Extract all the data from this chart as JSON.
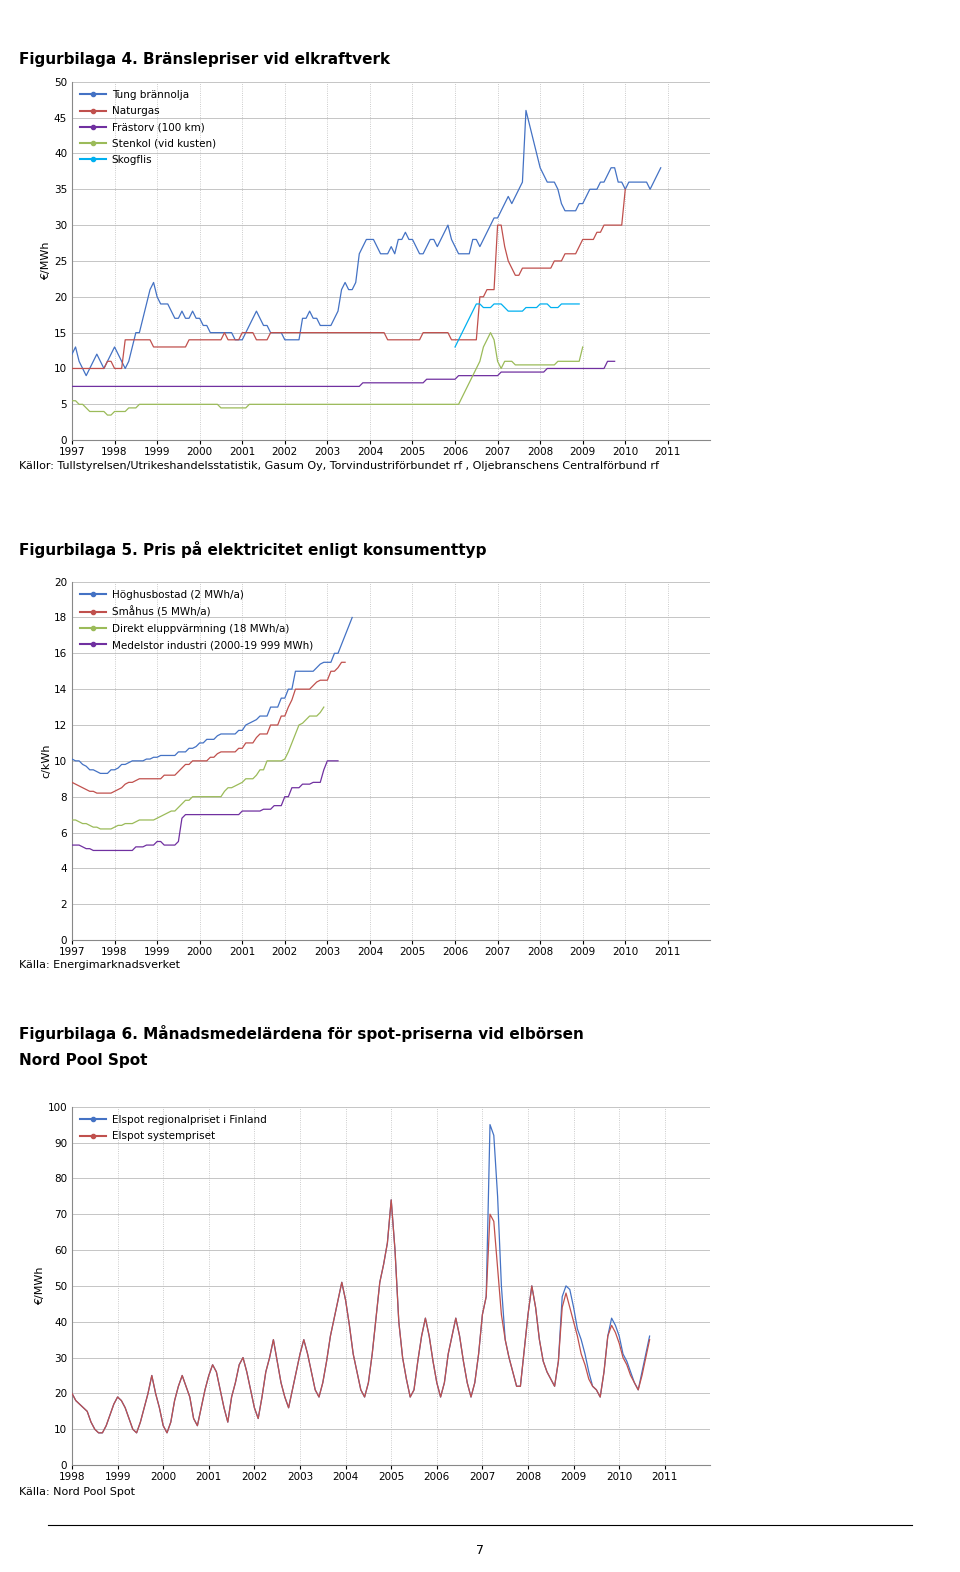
{
  "fig4_title": "Figurbilaga 4. Bränslepriser vid elkraftverk",
  "fig4_ylabel": "€/MWh",
  "fig4_ylim": [
    0,
    50
  ],
  "fig4_yticks": [
    0,
    5,
    10,
    15,
    20,
    25,
    30,
    35,
    40,
    45,
    50
  ],
  "fig4_years": [
    1997,
    1998,
    1999,
    2000,
    2001,
    2002,
    2003,
    2004,
    2005,
    2006,
    2007,
    2008,
    2009,
    2010,
    2011
  ],
  "fig4_source": "Källor: Tullstyrelsen/Utrikeshandelsstatistik, Gasum Oy, Torvindustriförbundet rf , Oljebranschens Centralförbund rf",
  "fig4_series": {
    "Tung brännolja": {
      "color": "#4472C4",
      "start_year": 1997,
      "values": [
        12,
        13,
        11,
        10,
        9,
        10,
        11,
        12,
        11,
        10,
        11,
        12,
        13,
        12,
        11,
        10,
        11,
        13,
        15,
        15,
        17,
        19,
        21,
        22,
        20,
        19,
        19,
        19,
        18,
        17,
        17,
        18,
        17,
        17,
        18,
        17,
        17,
        16,
        16,
        15,
        15,
        15,
        15,
        15,
        15,
        15,
        14,
        14,
        14,
        15,
        16,
        17,
        18,
        17,
        16,
        16,
        15,
        15,
        15,
        15,
        14,
        14,
        14,
        14,
        14,
        17,
        17,
        18,
        17,
        17,
        16,
        16,
        16,
        16,
        17,
        18,
        21,
        22,
        21,
        21,
        22,
        26,
        27,
        28,
        28,
        28,
        27,
        26,
        26,
        26,
        27,
        26,
        28,
        28,
        29,
        28,
        28,
        27,
        26,
        26,
        27,
        28,
        28,
        27,
        28,
        29,
        30,
        28,
        27,
        26,
        26,
        26,
        26,
        28,
        28,
        27,
        28,
        29,
        30,
        31,
        31,
        32,
        33,
        34,
        33,
        34,
        35,
        36,
        46,
        44,
        42,
        40,
        38,
        37,
        36,
        36,
        36,
        35,
        33,
        32,
        32,
        32,
        32,
        33,
        33,
        34,
        35,
        35,
        35,
        36,
        36,
        37,
        38,
        38,
        36,
        36,
        35,
        36,
        36,
        36,
        36,
        36,
        36,
        35,
        36,
        37,
        38
      ]
    },
    "Naturgas": {
      "color": "#C0504D",
      "start_year": 1997,
      "values": [
        10,
        10,
        10,
        10,
        10,
        10,
        10,
        10,
        10,
        10,
        11,
        11,
        10,
        10,
        10,
        14,
        14,
        14,
        14,
        14,
        14,
        14,
        14,
        13,
        13,
        13,
        13,
        13,
        13,
        13,
        13,
        13,
        13,
        14,
        14,
        14,
        14,
        14,
        14,
        14,
        14,
        14,
        14,
        15,
        14,
        14,
        14,
        14,
        15,
        15,
        15,
        15,
        14,
        14,
        14,
        14,
        15,
        15,
        15,
        15,
        15,
        15,
        15,
        15,
        15,
        15,
        15,
        15,
        15,
        15,
        15,
        15,
        15,
        15,
        15,
        15,
        15,
        15,
        15,
        15,
        15,
        15,
        15,
        15,
        15,
        15,
        15,
        15,
        15,
        14,
        14,
        14,
        14,
        14,
        14,
        14,
        14,
        14,
        14,
        15,
        15,
        15,
        15,
        15,
        15,
        15,
        15,
        14,
        14,
        14,
        14,
        14,
        14,
        14,
        14,
        20,
        20,
        21,
        21,
        21,
        30,
        30,
        27,
        25,
        24,
        23,
        23,
        24,
        24,
        24,
        24,
        24,
        24,
        24,
        24,
        24,
        25,
        25,
        25,
        26,
        26,
        26,
        26,
        27,
        28,
        28,
        28,
        28,
        29,
        29,
        30,
        30,
        30,
        30,
        30,
        30,
        35
      ]
    },
    "Frästorv (100 km)": {
      "color": "#7030A0",
      "start_year": 1997,
      "values": [
        7.5,
        7.5,
        7.5,
        7.5,
        7.5,
        7.5,
        7.5,
        7.5,
        7.5,
        7.5,
        7.5,
        7.5,
        7.5,
        7.5,
        7.5,
        7.5,
        7.5,
        7.5,
        7.5,
        7.5,
        7.5,
        7.5,
        7.5,
        7.5,
        7.5,
        7.5,
        7.5,
        7.5,
        7.5,
        7.5,
        7.5,
        7.5,
        7.5,
        7.5,
        7.5,
        7.5,
        7.5,
        7.5,
        7.5,
        7.5,
        7.5,
        7.5,
        7.5,
        7.5,
        7.5,
        7.5,
        7.5,
        7.5,
        7.5,
        7.5,
        7.5,
        7.5,
        7.5,
        7.5,
        7.5,
        7.5,
        7.5,
        7.5,
        7.5,
        7.5,
        7.5,
        7.5,
        7.5,
        7.5,
        7.5,
        7.5,
        7.5,
        7.5,
        7.5,
        7.5,
        7.5,
        7.5,
        7.5,
        7.5,
        7.5,
        7.5,
        7.5,
        7.5,
        7.5,
        7.5,
        7.5,
        7.5,
        8,
        8,
        8,
        8,
        8,
        8,
        8,
        8,
        8,
        8,
        8,
        8,
        8,
        8,
        8,
        8,
        8,
        8,
        8.5,
        8.5,
        8.5,
        8.5,
        8.5,
        8.5,
        8.5,
        8.5,
        8.5,
        9,
        9,
        9,
        9,
        9,
        9,
        9,
        9,
        9,
        9,
        9,
        9,
        9.5,
        9.5,
        9.5,
        9.5,
        9.5,
        9.5,
        9.5,
        9.5,
        9.5,
        9.5,
        9.5,
        9.5,
        9.5,
        10,
        10,
        10,
        10,
        10,
        10,
        10,
        10,
        10,
        10,
        10,
        10,
        10,
        10,
        10,
        10,
        10,
        11,
        11,
        11
      ]
    },
    "Stenkol (vid kusten)": {
      "color": "#9BBB59",
      "start_year": 1997,
      "values": [
        5.5,
        5.5,
        5,
        5,
        4.5,
        4,
        4,
        4,
        4,
        4,
        3.5,
        3.5,
        4,
        4,
        4,
        4,
        4.5,
        4.5,
        4.5,
        5,
        5,
        5,
        5,
        5,
        5,
        5,
        5,
        5,
        5,
        5,
        5,
        5,
        5,
        5,
        5,
        5,
        5,
        5,
        5,
        5,
        5,
        5,
        4.5,
        4.5,
        4.5,
        4.5,
        4.5,
        4.5,
        4.5,
        4.5,
        5,
        5,
        5,
        5,
        5,
        5,
        5,
        5,
        5,
        5,
        5,
        5,
        5,
        5,
        5,
        5,
        5,
        5,
        5,
        5,
        5,
        5,
        5,
        5,
        5,
        5,
        5,
        5,
        5,
        5,
        5,
        5,
        5,
        5,
        5,
        5,
        5,
        5,
        5,
        5,
        5,
        5,
        5,
        5,
        5,
        5,
        5,
        5,
        5,
        5,
        5,
        5,
        5,
        5,
        5,
        5,
        5,
        5,
        5,
        5,
        6,
        7,
        8,
        9,
        10,
        11,
        13,
        14,
        15,
        14,
        11,
        10,
        11,
        11,
        11,
        10.5,
        10.5,
        10.5,
        10.5,
        10.5,
        10.5,
        10.5,
        10.5,
        10.5,
        10.5,
        10.5,
        10.5,
        11,
        11,
        11,
        11,
        11,
        11,
        11,
        13
      ]
    },
    "Skogflis": {
      "color": "#00B0F0",
      "start_year": 2006,
      "values": [
        13,
        14,
        15,
        16,
        17,
        18,
        19,
        19,
        18.5,
        18.5,
        18.5,
        19,
        19,
        19,
        18.5,
        18,
        18,
        18,
        18,
        18,
        18.5,
        18.5,
        18.5,
        18.5,
        19,
        19,
        19,
        18.5,
        18.5,
        18.5,
        19,
        19,
        19,
        19,
        19,
        19
      ]
    }
  },
  "fig5_title": "Figurbilaga 5. Pris på elektricitet enligt konsumenttyp",
  "fig5_ylabel": "c/kWh",
  "fig5_ylim": [
    0,
    20
  ],
  "fig5_yticks": [
    0,
    2,
    4,
    6,
    8,
    10,
    12,
    14,
    16,
    18,
    20
  ],
  "fig5_years": [
    1997,
    1998,
    1999,
    2000,
    2001,
    2002,
    2003,
    2004,
    2005,
    2006,
    2007,
    2008,
    2009,
    2010,
    2011
  ],
  "fig5_source": "Källa: Energimarknadsverket",
  "fig5_series": {
    "Höghusbostad (2 MWh/a)": {
      "color": "#4472C4",
      "start_year": 1997,
      "values": [
        10.1,
        10.0,
        10.0,
        9.8,
        9.7,
        9.5,
        9.5,
        9.4,
        9.3,
        9.3,
        9.3,
        9.5,
        9.5,
        9.6,
        9.8,
        9.8,
        9.9,
        10.0,
        10.0,
        10.0,
        10.0,
        10.1,
        10.1,
        10.2,
        10.2,
        10.3,
        10.3,
        10.3,
        10.3,
        10.3,
        10.5,
        10.5,
        10.5,
        10.7,
        10.7,
        10.8,
        11.0,
        11.0,
        11.2,
        11.2,
        11.2,
        11.4,
        11.5,
        11.5,
        11.5,
        11.5,
        11.5,
        11.7,
        11.7,
        12.0,
        12.1,
        12.2,
        12.3,
        12.5,
        12.5,
        12.5,
        13.0,
        13.0,
        13.0,
        13.5,
        13.5,
        14.0,
        14.0,
        15.0,
        15.0,
        15.0,
        15.0,
        15.0,
        15.0,
        15.2,
        15.4,
        15.5,
        15.5,
        15.5,
        16.0,
        16.0,
        16.5,
        17.0,
        17.5,
        18.0
      ]
    },
    "Småhus (5 MWh/a)": {
      "color": "#C0504D",
      "start_year": 1997,
      "values": [
        8.8,
        8.7,
        8.6,
        8.5,
        8.4,
        8.3,
        8.3,
        8.2,
        8.2,
        8.2,
        8.2,
        8.2,
        8.3,
        8.4,
        8.5,
        8.7,
        8.8,
        8.8,
        8.9,
        9.0,
        9.0,
        9.0,
        9.0,
        9.0,
        9.0,
        9.0,
        9.2,
        9.2,
        9.2,
        9.2,
        9.4,
        9.6,
        9.8,
        9.8,
        10.0,
        10.0,
        10.0,
        10.0,
        10.0,
        10.2,
        10.2,
        10.4,
        10.5,
        10.5,
        10.5,
        10.5,
        10.5,
        10.7,
        10.7,
        11.0,
        11.0,
        11.0,
        11.3,
        11.5,
        11.5,
        11.5,
        12.0,
        12.0,
        12.0,
        12.5,
        12.5,
        13.0,
        13.4,
        14.0,
        14.0,
        14.0,
        14.0,
        14.0,
        14.2,
        14.4,
        14.5,
        14.5,
        14.5,
        15.0,
        15.0,
        15.2,
        15.5,
        15.5
      ]
    },
    "Direkt eluppvärmning (18 MWh/a)": {
      "color": "#9BBB59",
      "start_year": 1997,
      "values": [
        6.7,
        6.7,
        6.6,
        6.5,
        6.5,
        6.4,
        6.3,
        6.3,
        6.2,
        6.2,
        6.2,
        6.2,
        6.3,
        6.4,
        6.4,
        6.5,
        6.5,
        6.5,
        6.6,
        6.7,
        6.7,
        6.7,
        6.7,
        6.7,
        6.8,
        6.9,
        7.0,
        7.1,
        7.2,
        7.2,
        7.4,
        7.6,
        7.8,
        7.8,
        8.0,
        8.0,
        8.0,
        8.0,
        8.0,
        8.0,
        8.0,
        8.0,
        8.0,
        8.3,
        8.5,
        8.5,
        8.6,
        8.7,
        8.8,
        9.0,
        9.0,
        9.0,
        9.2,
        9.5,
        9.5,
        10.0,
        10.0,
        10.0,
        10.0,
        10.0,
        10.1,
        10.5,
        11.0,
        11.5,
        12.0,
        12.1,
        12.3,
        12.5,
        12.5,
        12.5,
        12.7,
        13.0
      ]
    },
    "Medelstor industri (2000-19 999 MWh)": {
      "color": "#7030A0",
      "start_year": 1997,
      "values": [
        5.3,
        5.3,
        5.3,
        5.2,
        5.1,
        5.1,
        5.0,
        5.0,
        5.0,
        5.0,
        5.0,
        5.0,
        5.0,
        5.0,
        5.0,
        5.0,
        5.0,
        5.0,
        5.2,
        5.2,
        5.2,
        5.3,
        5.3,
        5.3,
        5.5,
        5.5,
        5.3,
        5.3,
        5.3,
        5.3,
        5.5,
        6.8,
        7.0,
        7.0,
        7.0,
        7.0,
        7.0,
        7.0,
        7.0,
        7.0,
        7.0,
        7.0,
        7.0,
        7.0,
        7.0,
        7.0,
        7.0,
        7.0,
        7.2,
        7.2,
        7.2,
        7.2,
        7.2,
        7.2,
        7.3,
        7.3,
        7.3,
        7.5,
        7.5,
        7.5,
        8.0,
        8.0,
        8.5,
        8.5,
        8.5,
        8.7,
        8.7,
        8.7,
        8.8,
        8.8,
        8.8,
        9.5,
        10.0,
        10.0,
        10.0,
        10.0
      ]
    }
  },
  "fig6_title_line1": "Figurbilaga 6. Månadsmedelärdena för spot-priserna vid elbörsen",
  "fig6_title_line2": "Nord Pool Spot",
  "fig6_ylabel": "€/MWh",
  "fig6_ylim": [
    0,
    100
  ],
  "fig6_yticks": [
    0,
    10,
    20,
    30,
    40,
    50,
    60,
    70,
    80,
    90,
    100
  ],
  "fig6_years": [
    1998,
    1999,
    2000,
    2001,
    2002,
    2003,
    2004,
    2005,
    2006,
    2007,
    2008,
    2009,
    2010,
    2011
  ],
  "fig6_source": "Källa: Nord Pool Spot",
  "fig6_series": {
    "Elspot regionalpriset i Finland": {
      "color": "#4472C4",
      "start_year": 1998,
      "values": [
        20,
        18,
        17,
        16,
        15,
        12,
        10,
        9,
        9,
        11,
        14,
        17,
        19,
        18,
        16,
        13,
        10,
        9,
        12,
        16,
        20,
        25,
        20,
        16,
        11,
        9,
        12,
        18,
        22,
        25,
        22,
        19,
        13,
        11,
        16,
        21,
        25,
        28,
        26,
        21,
        16,
        12,
        19,
        23,
        28,
        30,
        26,
        21,
        16,
        13,
        19,
        26,
        30,
        35,
        29,
        23,
        19,
        16,
        21,
        26,
        31,
        35,
        31,
        26,
        21,
        19,
        23,
        29,
        36,
        41,
        46,
        51,
        46,
        39,
        31,
        26,
        21,
        19,
        23,
        31,
        41,
        51,
        56,
        62,
        74,
        60,
        40,
        30,
        24,
        19,
        21,
        29,
        36,
        41,
        36,
        29,
        23,
        19,
        23,
        31,
        36,
        41,
        36,
        29,
        23,
        19,
        23,
        31,
        42,
        47,
        95,
        92,
        75,
        50,
        35,
        30,
        26,
        22,
        22,
        32,
        42,
        50,
        44,
        35,
        29,
        26,
        24,
        22,
        29,
        47,
        50,
        49,
        44,
        38,
        35,
        31,
        26,
        22,
        21,
        19,
        26,
        36,
        41,
        39,
        36,
        31,
        29,
        26,
        23,
        21,
        26,
        31,
        36
      ]
    },
    "Elspot systempriset": {
      "color": "#C0504D",
      "start_year": 1998,
      "values": [
        20,
        18,
        17,
        16,
        15,
        12,
        10,
        9,
        9,
        11,
        14,
        17,
        19,
        18,
        16,
        13,
        10,
        9,
        12,
        16,
        20,
        25,
        20,
        16,
        11,
        9,
        12,
        18,
        22,
        25,
        22,
        19,
        13,
        11,
        16,
        21,
        25,
        28,
        26,
        21,
        16,
        12,
        19,
        23,
        28,
        30,
        26,
        21,
        16,
        13,
        19,
        26,
        30,
        35,
        29,
        23,
        19,
        16,
        21,
        26,
        31,
        35,
        31,
        26,
        21,
        19,
        23,
        29,
        36,
        41,
        46,
        51,
        46,
        39,
        31,
        26,
        21,
        19,
        23,
        31,
        41,
        51,
        56,
        62,
        74,
        60,
        40,
        30,
        24,
        19,
        21,
        29,
        36,
        41,
        36,
        29,
        23,
        19,
        23,
        31,
        36,
        41,
        36,
        29,
        23,
        19,
        23,
        31,
        42,
        47,
        70,
        68,
        55,
        42,
        35,
        30,
        26,
        22,
        22,
        32,
        42,
        50,
        44,
        35,
        29,
        26,
        24,
        22,
        29,
        44,
        48,
        44,
        40,
        36,
        31,
        28,
        24,
        22,
        21,
        19,
        26,
        36,
        39,
        37,
        34,
        30,
        28,
        25,
        23,
        21,
        25,
        30,
        35
      ]
    }
  },
  "page_number": "7"
}
